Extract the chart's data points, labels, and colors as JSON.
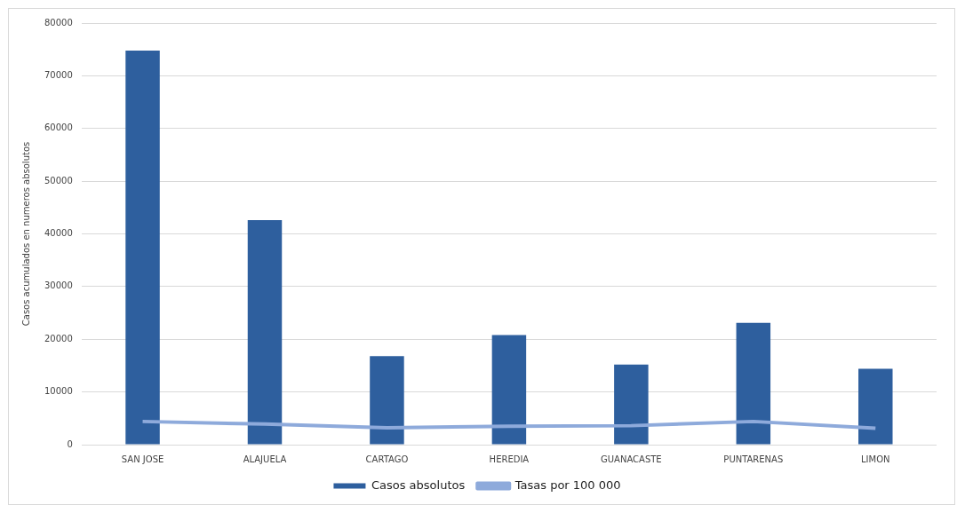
{
  "chart_data": {
    "type": "bar",
    "ylabel": "Casos acumulados en numeros absolutos",
    "categories": [
      "SAN JOSE",
      "ALAJUELA",
      "CARTAGO",
      "HEREDIA",
      "GUANACASTE",
      "PUNTARENAS",
      "LIMON"
    ],
    "series": [
      {
        "name": "Casos absolutos",
        "color": "#2e5f9e",
        "values": [
          74800,
          42600,
          16800,
          20800,
          15200,
          23100,
          14400
        ]
      },
      {
        "name": "Tasas por 100 000",
        "type": "line",
        "color": "#8eaadb",
        "values": [
          4400,
          3900,
          3200,
          3500,
          3600,
          4400,
          3100
        ]
      }
    ],
    "ylim": [
      0,
      80000
    ],
    "yticks": [
      0,
      10000,
      20000,
      30000,
      40000,
      50000,
      60000,
      70000,
      80000
    ],
    "grid": "y",
    "legend": "bottom",
    "marker": "none"
  }
}
